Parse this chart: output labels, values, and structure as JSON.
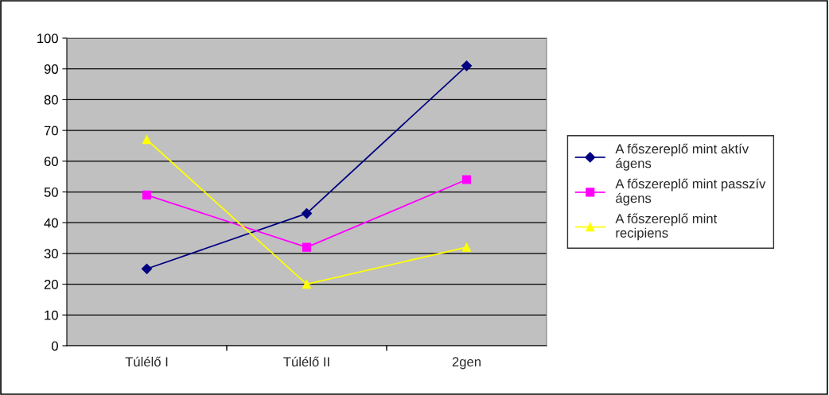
{
  "chart_data": {
    "type": "line",
    "categories": [
      "Túlélő I",
      "Túlélő II",
      "2gen"
    ],
    "series": [
      {
        "name": "A főszereplő mint aktív ágens",
        "color": "#000080",
        "marker": "diamond",
        "values": [
          25,
          43,
          91
        ]
      },
      {
        "name": "A főszereplő mint passzív ágens",
        "color": "#ff00ff",
        "marker": "square",
        "values": [
          49,
          32,
          54
        ]
      },
      {
        "name": "A főszereplő mint recipiens",
        "color": "#ffff00",
        "marker": "triangle",
        "values": [
          67,
          20,
          32
        ]
      }
    ],
    "ylim": [
      0,
      100
    ],
    "yticks": [
      0,
      10,
      20,
      30,
      40,
      50,
      60,
      70,
      80,
      90,
      100
    ],
    "grid": "y",
    "legend": "right"
  }
}
